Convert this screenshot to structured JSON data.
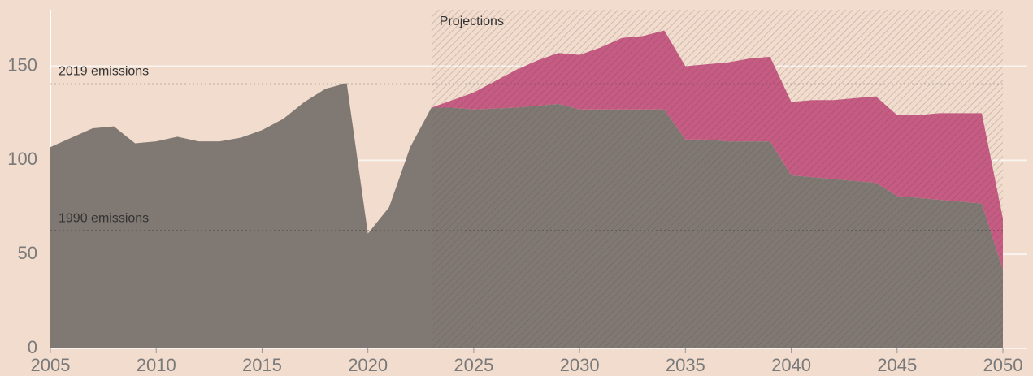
{
  "chart_data": {
    "type": "stacked_area",
    "x": [
      2005,
      2006,
      2007,
      2008,
      2009,
      2010,
      2011,
      2012,
      2013,
      2014,
      2015,
      2016,
      2017,
      2018,
      2019,
      2020,
      2021,
      2022,
      2023,
      2024,
      2025,
      2026,
      2027,
      2028,
      2029,
      2030,
      2031,
      2032,
      2033,
      2034,
      2035,
      2036,
      2037,
      2038,
      2039,
      2040,
      2041,
      2042,
      2043,
      2044,
      2045,
      2046,
      2047,
      2048,
      2049,
      2050
    ],
    "series": [
      {
        "color": "#807973",
        "values": [
          107,
          112,
          117,
          118,
          109,
          110,
          112.5,
          110,
          110,
          112,
          116,
          122,
          131,
          138,
          141,
          61,
          75,
          107,
          128,
          128,
          127,
          127.5,
          128,
          129,
          130,
          127,
          127,
          127,
          127,
          127,
          111,
          111,
          110,
          110,
          110,
          92,
          91,
          90,
          89,
          88,
          81,
          80,
          79,
          78,
          77,
          42
        ]
      },
      {
        "color": "#c65b83",
        "values": [
          null,
          null,
          null,
          null,
          null,
          null,
          null,
          null,
          null,
          null,
          null,
          null,
          null,
          null,
          null,
          null,
          null,
          null,
          0,
          4,
          9,
          14.5,
          20,
          24,
          27,
          29,
          33,
          38,
          39,
          42,
          39,
          40,
          42,
          44,
          45,
          39,
          41,
          42,
          44,
          46,
          43,
          44,
          46,
          47,
          48,
          27
        ]
      }
    ],
    "xlim": [
      2005,
      2050
    ],
    "xticks": [
      2005,
      2010,
      2015,
      2020,
      2025,
      2030,
      2035,
      2040,
      2045,
      2050
    ],
    "ylim": [
      0,
      180
    ],
    "yticks": [
      0,
      50,
      100,
      150
    ],
    "grid": true,
    "reference_lines": [
      {
        "label": "2019 emissions",
        "value": 140.5
      },
      {
        "label": "1990 emissions",
        "value": 62.5
      }
    ],
    "shaded_region": {
      "label": "Projections",
      "x": [
        2023,
        2050
      ]
    }
  }
}
